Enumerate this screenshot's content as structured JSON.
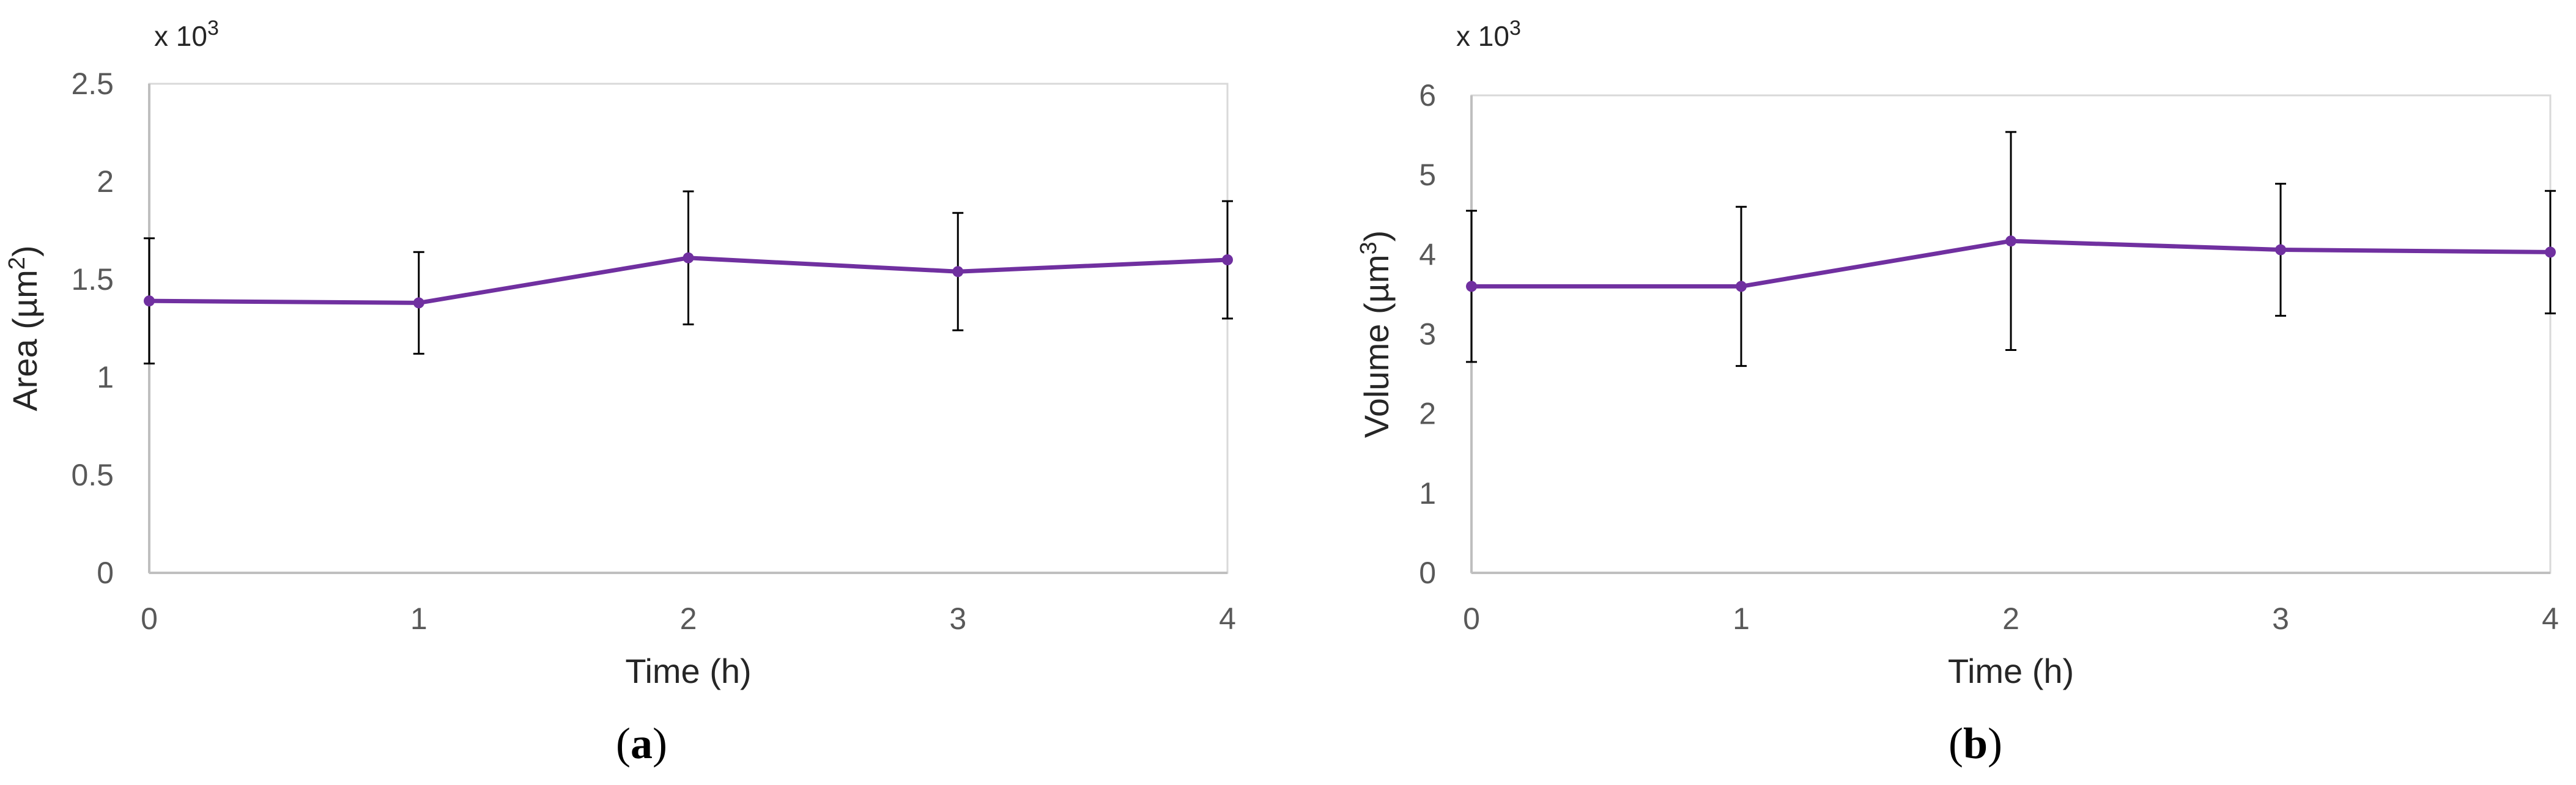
{
  "colors": {
    "series": "#7030A0",
    "error_bar": "#000000",
    "plot_border": "#D9D9D9",
    "axis": "#BFBFBF",
    "tick_text": "#595959"
  },
  "chart_data": [
    {
      "type": "line",
      "panel": "(a)",
      "panel_letter": "a",
      "multiplier_base": "x 10",
      "multiplier_exp": "3",
      "xlabel": "Time (h)",
      "ylabel_pre": "Area (µm",
      "ylabel_sup": "2",
      "ylabel_post": ")",
      "x": [
        0,
        1,
        2,
        3,
        4
      ],
      "xticks": [
        "0",
        "1",
        "2",
        "3",
        "4"
      ],
      "yticks": [
        "0",
        "0.5",
        "1",
        "1.5",
        "2",
        "2.5"
      ],
      "ylim": [
        0,
        2.5
      ],
      "xlim": [
        0,
        4
      ],
      "grid": false,
      "series": [
        {
          "values": [
            1.39,
            1.38,
            1.61,
            1.54,
            1.6
          ],
          "error": [
            0.32,
            0.26,
            0.34,
            0.3,
            0.3
          ]
        }
      ]
    },
    {
      "type": "line",
      "panel": "(b)",
      "panel_letter": "b",
      "multiplier_base": "x 10",
      "multiplier_exp": "3",
      "xlabel": "Time (h)",
      "ylabel_pre": "Volume (µm",
      "ylabel_sup": "3",
      "ylabel_post": ")",
      "x": [
        0,
        1,
        2,
        3,
        4
      ],
      "xticks": [
        "0",
        "1",
        "2",
        "3",
        "4"
      ],
      "yticks": [
        "0",
        "1",
        "2",
        "3",
        "4",
        "5",
        "6"
      ],
      "ylim": [
        0,
        6
      ],
      "xlim": [
        0,
        4
      ],
      "grid": false,
      "series": [
        {
          "values": [
            3.6,
            3.6,
            4.17,
            4.06,
            4.03
          ],
          "error": [
            0.95,
            1.0,
            1.37,
            0.83,
            0.77
          ]
        }
      ]
    }
  ]
}
